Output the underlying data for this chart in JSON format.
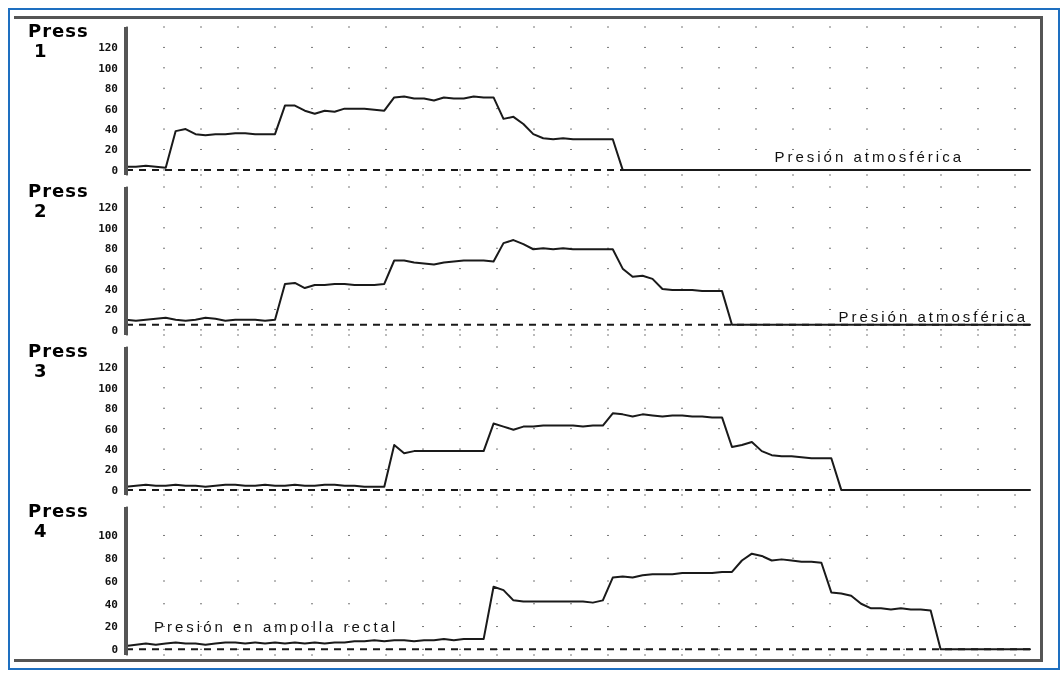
{
  "chart_data": [
    {
      "type": "line",
      "title": "Press 1",
      "categories": [
        null,
        null,
        null,
        null,
        null,
        null,
        null,
        null,
        null,
        null,
        null,
        null,
        null,
        null,
        null,
        null,
        null,
        null,
        null,
        null,
        null,
        null,
        null,
        null,
        null,
        null,
        null,
        null,
        null,
        null,
        null,
        null,
        null,
        null,
        null,
        null,
        null,
        null,
        null,
        null,
        null,
        null,
        null,
        null,
        null,
        null,
        null,
        null,
        null,
        null,
        null,
        null,
        null,
        null,
        null,
        null,
        null,
        null,
        null,
        null,
        null,
        null,
        null,
        null,
        null,
        null,
        null,
        null,
        null,
        null,
        null,
        null,
        null,
        null,
        null,
        null,
        null,
        null,
        null,
        null,
        null,
        null,
        null,
        null,
        null,
        null,
        null,
        null,
        null,
        null,
        null,
        null
      ],
      "series": [
        {
          "color": "#1a1a1a",
          "values": [
            3,
            3,
            4,
            3,
            2,
            38,
            40,
            35,
            34,
            35,
            35,
            36,
            36,
            35,
            35,
            35,
            63,
            63,
            58,
            55,
            58,
            57,
            60,
            60,
            60,
            59,
            58,
            71,
            72,
            70,
            70,
            68,
            71,
            70,
            70,
            72,
            71,
            71,
            50,
            52,
            45,
            35,
            31,
            30,
            31,
            30,
            30,
            30,
            30,
            30,
            0,
            0,
            0,
            0,
            0,
            0,
            0,
            0,
            0,
            0,
            0,
            0,
            0,
            0,
            0,
            0,
            0,
            0,
            0,
            0,
            0,
            0,
            0,
            0,
            0,
            0,
            0,
            0,
            0,
            0,
            0,
            0,
            0,
            0,
            0,
            0,
            0,
            0,
            0,
            0,
            0,
            0
          ]
        }
      ],
      "ylim": [
        -5,
        140
      ],
      "yticks": [
        0,
        20,
        40,
        60,
        80,
        100,
        120
      ],
      "grid": "y",
      "marker": "none",
      "line_style": "solid",
      "ref_lines": [
        {
          "axis": "y",
          "value": 0,
          "color": "#1a1a1a",
          "line_style": "dashed"
        }
      ],
      "annotations": [
        "Presión atmosférica"
      ]
    },
    {
      "type": "line",
      "title": "Press 2",
      "categories": [
        null,
        null,
        null,
        null,
        null,
        null,
        null,
        null,
        null,
        null,
        null,
        null,
        null,
        null,
        null,
        null,
        null,
        null,
        null,
        null,
        null,
        null,
        null,
        null,
        null,
        null,
        null,
        null,
        null,
        null,
        null,
        null,
        null,
        null,
        null,
        null,
        null,
        null,
        null,
        null,
        null,
        null,
        null,
        null,
        null,
        null,
        null,
        null,
        null,
        null,
        null,
        null,
        null,
        null,
        null,
        null,
        null,
        null,
        null,
        null,
        null,
        null,
        null,
        null,
        null,
        null,
        null,
        null,
        null,
        null,
        null,
        null,
        null,
        null,
        null,
        null,
        null,
        null,
        null,
        null,
        null,
        null,
        null,
        null,
        null,
        null,
        null,
        null,
        null,
        null,
        null,
        null
      ],
      "series": [
        {
          "color": "#1a1a1a",
          "values": [
            10,
            9,
            10,
            11,
            12,
            10,
            9,
            10,
            12,
            11,
            9,
            10,
            10,
            10,
            9,
            10,
            45,
            46,
            41,
            44,
            44,
            45,
            45,
            44,
            44,
            44,
            45,
            68,
            68,
            66,
            65,
            64,
            66,
            67,
            68,
            68,
            68,
            67,
            85,
            88,
            84,
            79,
            80,
            79,
            80,
            79,
            79,
            79,
            79,
            79,
            60,
            52,
            53,
            50,
            40,
            39,
            39,
            39,
            38,
            38,
            38,
            5,
            5,
            5,
            5,
            5,
            5,
            5,
            5,
            5,
            5,
            5,
            5,
            5,
            5,
            5,
            5,
            5,
            5,
            5,
            5,
            5,
            5,
            5,
            5,
            5,
            5,
            5,
            5,
            5,
            5,
            5
          ]
        }
      ],
      "ylim": [
        -5,
        140
      ],
      "yticks": [
        0,
        20,
        40,
        60,
        80,
        100,
        120
      ],
      "grid": "y",
      "marker": "none",
      "line_style": "solid",
      "ref_lines": [
        {
          "axis": "y",
          "value": 5,
          "color": "#1a1a1a",
          "line_style": "dashed"
        }
      ],
      "annotations": [
        "Presión atmosférica"
      ]
    },
    {
      "type": "line",
      "title": "Press 3",
      "categories": [
        null,
        null,
        null,
        null,
        null,
        null,
        null,
        null,
        null,
        null,
        null,
        null,
        null,
        null,
        null,
        null,
        null,
        null,
        null,
        null,
        null,
        null,
        null,
        null,
        null,
        null,
        null,
        null,
        null,
        null,
        null,
        null,
        null,
        null,
        null,
        null,
        null,
        null,
        null,
        null,
        null,
        null,
        null,
        null,
        null,
        null,
        null,
        null,
        null,
        null,
        null,
        null,
        null,
        null,
        null,
        null,
        null,
        null,
        null,
        null,
        null,
        null,
        null,
        null,
        null,
        null,
        null,
        null,
        null,
        null,
        null,
        null,
        null,
        null,
        null,
        null,
        null,
        null,
        null,
        null,
        null,
        null,
        null,
        null,
        null,
        null,
        null,
        null,
        null,
        null,
        null,
        null
      ],
      "series": [
        {
          "color": "#1a1a1a",
          "values": [
            3,
            4,
            5,
            4,
            4,
            5,
            4,
            4,
            3,
            4,
            5,
            5,
            4,
            4,
            5,
            4,
            4,
            5,
            4,
            4,
            5,
            5,
            4,
            4,
            3,
            3,
            3,
            44,
            36,
            38,
            38,
            38,
            38,
            38,
            38,
            38,
            38,
            65,
            62,
            59,
            62,
            62,
            63,
            63,
            63,
            63,
            62,
            63,
            63,
            75,
            74,
            72,
            74,
            73,
            72,
            73,
            73,
            72,
            72,
            71,
            71,
            42,
            44,
            47,
            38,
            34,
            33,
            33,
            32,
            31,
            31,
            31,
            0,
            0,
            0,
            0,
            0,
            0,
            0,
            0,
            0,
            0,
            0,
            0,
            0,
            0,
            0,
            0,
            0,
            0,
            0,
            0
          ]
        }
      ],
      "ylim": [
        -5,
        140
      ],
      "yticks": [
        0,
        20,
        40,
        60,
        80,
        100,
        120
      ],
      "grid": "y",
      "marker": "none",
      "line_style": "solid",
      "ref_lines": [
        {
          "axis": "y",
          "value": 0,
          "color": "#1a1a1a",
          "line_style": "dashed"
        }
      ]
    },
    {
      "type": "line",
      "title": "Press 4",
      "categories": [
        null,
        null,
        null,
        null,
        null,
        null,
        null,
        null,
        null,
        null,
        null,
        null,
        null,
        null,
        null,
        null,
        null,
        null,
        null,
        null,
        null,
        null,
        null,
        null,
        null,
        null,
        null,
        null,
        null,
        null,
        null,
        null,
        null,
        null,
        null,
        null,
        null,
        null,
        null,
        null,
        null,
        null,
        null,
        null,
        null,
        null,
        null,
        null,
        null,
        null,
        null,
        null,
        null,
        null,
        null,
        null,
        null,
        null,
        null,
        null,
        null,
        null,
        null,
        null,
        null,
        null,
        null,
        null,
        null,
        null,
        null,
        null,
        null,
        null,
        null,
        null,
        null,
        null,
        null,
        null,
        null,
        null,
        null,
        null,
        null,
        null,
        null,
        null,
        null,
        null,
        null,
        null
      ],
      "series": [
        {
          "color": "#1a1a1a",
          "values": [
            3,
            4,
            5,
            4,
            5,
            6,
            5,
            5,
            4,
            5,
            6,
            6,
            5,
            6,
            5,
            6,
            5,
            6,
            5,
            6,
            5,
            6,
            6,
            7,
            7,
            8,
            7,
            8,
            8,
            7,
            8,
            8,
            9,
            8,
            9,
            9,
            9,
            55,
            52,
            43,
            42,
            42,
            42,
            42,
            42,
            42,
            42,
            41,
            43,
            63,
            64,
            63,
            65,
            66,
            66,
            66,
            67,
            67,
            67,
            67,
            68,
            68,
            78,
            84,
            82,
            78,
            79,
            78,
            77,
            77,
            76,
            50,
            49,
            47,
            40,
            36,
            36,
            35,
            36,
            35,
            35,
            34,
            0,
            0,
            0,
            0,
            0,
            0,
            0,
            0,
            0,
            0
          ]
        }
      ],
      "ylim": [
        -5,
        125
      ],
      "yticks": [
        0,
        20,
        40,
        60,
        80,
        100
      ],
      "grid": "y",
      "marker": "none",
      "line_style": "solid",
      "ref_lines": [
        {
          "axis": "y",
          "value": 0,
          "color": "#1a1a1a",
          "line_style": "dashed"
        }
      ],
      "annotations": [
        "Presión en ampolla rectal"
      ]
    }
  ]
}
